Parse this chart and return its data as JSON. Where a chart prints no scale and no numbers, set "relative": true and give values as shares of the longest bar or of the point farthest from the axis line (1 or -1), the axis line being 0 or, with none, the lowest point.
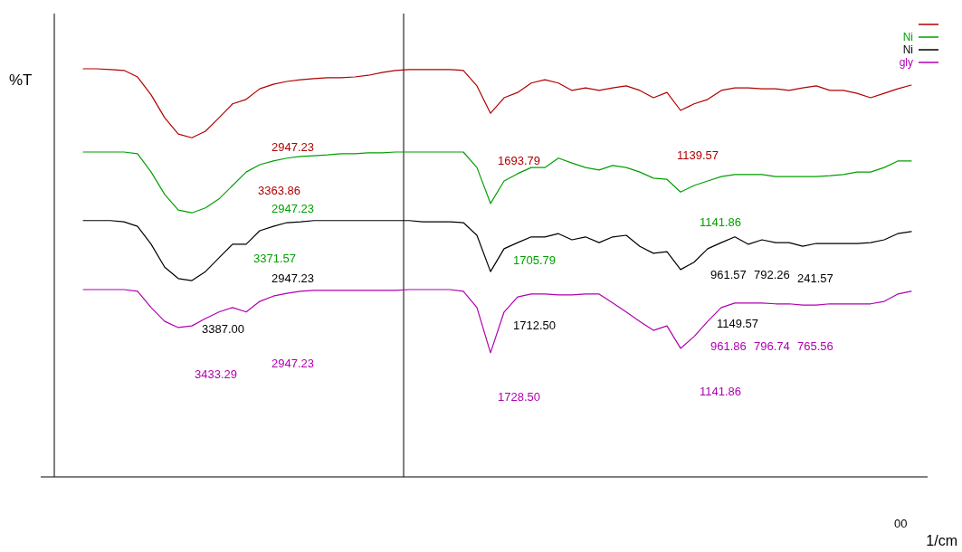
{
  "chart_data": {
    "type": "line",
    "relative": true,
    "ylabel": "%T",
    "xlabel": "1/cm",
    "legend": "top right",
    "categories": [
      null,
      null,
      null,
      null,
      null,
      null,
      null,
      null,
      null,
      null,
      null,
      null,
      null,
      null,
      null,
      null,
      null,
      null,
      null,
      null,
      null,
      null,
      null,
      null,
      null,
      null,
      null,
      null,
      null,
      null,
      null,
      null,
      null,
      null,
      null,
      null,
      null,
      null,
      null,
      null,
      null,
      null,
      null,
      null,
      null,
      null,
      null,
      null,
      null,
      null,
      null,
      null,
      null,
      null,
      null,
      null,
      null,
      null,
      null,
      null,
      null,
      null
    ],
    "series": [
      {
        "color": "#b00000",
        "values": [
          1.0,
          1.0,
          0.998,
          0.996,
          0.98,
          0.936,
          0.88,
          0.84,
          0.831,
          0.847,
          0.88,
          0.914,
          0.925,
          0.951,
          0.962,
          0.969,
          0.973,
          0.976,
          0.978,
          0.978,
          0.98,
          0.984,
          0.991,
          0.996,
          0.998,
          0.998,
          0.998,
          0.998,
          0.996,
          0.958,
          0.891,
          0.929,
          0.942,
          0.965,
          0.973,
          0.965,
          0.947,
          0.953,
          0.947,
          0.953,
          0.958,
          0.947,
          0.929,
          0.942,
          0.898,
          0.914,
          0.925,
          0.947,
          0.953,
          0.953,
          0.951,
          0.951,
          0.947,
          0.953,
          0.958,
          0.947,
          0.947,
          0.94,
          0.929,
          0.94,
          0.951,
          0.96
        ]
      },
      {
        "name": "Ni",
        "color": "#00a000",
        "values": [
          0.796,
          0.796,
          0.796,
          0.796,
          0.792,
          0.747,
          0.692,
          0.654,
          0.647,
          0.659,
          0.681,
          0.714,
          0.747,
          0.765,
          0.774,
          0.781,
          0.785,
          0.787,
          0.789,
          0.792,
          0.792,
          0.794,
          0.794,
          0.796,
          0.796,
          0.796,
          0.796,
          0.796,
          0.796,
          0.758,
          0.67,
          0.725,
          0.743,
          0.758,
          0.758,
          0.781,
          0.769,
          0.758,
          0.752,
          0.763,
          0.758,
          0.747,
          0.732,
          0.729,
          0.698,
          0.714,
          0.725,
          0.736,
          0.741,
          0.741,
          0.741,
          0.736,
          0.736,
          0.736,
          0.736,
          0.738,
          0.741,
          0.747,
          0.747,
          0.758,
          0.774,
          0.774
        ]
      },
      {
        "name": "Ni",
        "color": "#000000",
        "values": [
          0.628,
          0.628,
          0.628,
          0.625,
          0.614,
          0.57,
          0.514,
          0.486,
          0.481,
          0.503,
          0.537,
          0.57,
          0.57,
          0.603,
          0.614,
          0.623,
          0.625,
          0.628,
          0.628,
          0.628,
          0.628,
          0.628,
          0.628,
          0.628,
          0.628,
          0.625,
          0.625,
          0.625,
          0.623,
          0.592,
          0.503,
          0.559,
          0.574,
          0.588,
          0.588,
          0.596,
          0.581,
          0.588,
          0.574,
          0.588,
          0.592,
          0.565,
          0.548,
          0.552,
          0.508,
          0.526,
          0.559,
          0.574,
          0.588,
          0.57,
          0.581,
          0.574,
          0.574,
          0.565,
          0.572,
          0.572,
          0.572,
          0.572,
          0.574,
          0.581,
          0.596,
          0.601
        ]
      },
      {
        "name": "gly",
        "color": "#b000b0",
        "values": [
          0.459,
          0.459,
          0.459,
          0.459,
          0.455,
          0.415,
          0.381,
          0.366,
          0.37,
          0.388,
          0.404,
          0.415,
          0.404,
          0.43,
          0.443,
          0.45,
          0.455,
          0.457,
          0.457,
          0.457,
          0.457,
          0.457,
          0.457,
          0.457,
          0.459,
          0.459,
          0.459,
          0.459,
          0.455,
          0.415,
          0.304,
          0.404,
          0.441,
          0.448,
          0.448,
          0.446,
          0.446,
          0.448,
          0.448,
          0.426,
          0.404,
          0.381,
          0.359,
          0.37,
          0.315,
          0.344,
          0.381,
          0.415,
          0.426,
          0.426,
          0.426,
          0.424,
          0.424,
          0.421,
          0.421,
          0.424,
          0.424,
          0.424,
          0.424,
          0.43,
          0.448,
          0.455
        ]
      }
    ],
    "annotations": [
      "2947.23",
      "3363.86",
      "1693.79",
      "1139.57",
      "2947.23",
      "3371.57",
      "1705.79",
      "1141.86",
      "2947.23",
      "3387.00",
      "1712.50",
      "1149.57",
      "961.57",
      "792.26",
      "241.57",
      "3433.29",
      "2947.23",
      "1728.50",
      "1141.86",
      "961.86",
      "796.74",
      "765.56",
      "00"
    ]
  }
}
